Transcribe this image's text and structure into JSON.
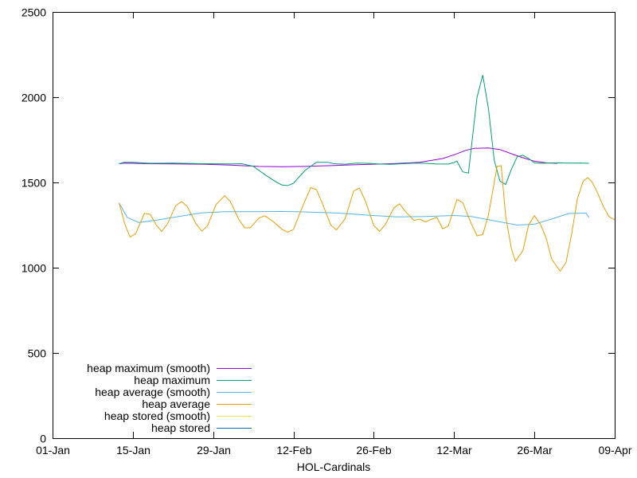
{
  "chart_data": {
    "type": "line",
    "title": "",
    "xlabel": "HOL-Cardinals",
    "ylabel": "",
    "x_ticks": [
      "01-Jan",
      "15-Jan",
      "29-Jan",
      "12-Feb",
      "26-Feb",
      "12-Mar",
      "26-Mar",
      "09-Apr"
    ],
    "y_ticks": [
      "0",
      "500",
      "1000",
      "1500",
      "2000",
      "2500"
    ],
    "x_range_days": [
      0,
      98
    ],
    "ylim": [
      0,
      2500
    ],
    "grid": false,
    "legend_position": "bottom-left",
    "series": [
      {
        "name": "heap maximum (smooth)",
        "color": "#9400d3",
        "points": [
          [
            11.6,
            1610
          ],
          [
            12.5,
            1613
          ],
          [
            14,
            1612
          ],
          [
            17,
            1610
          ],
          [
            21,
            1609
          ],
          [
            26,
            1607
          ],
          [
            31,
            1602
          ],
          [
            36,
            1594
          ],
          [
            40,
            1592
          ],
          [
            44,
            1594
          ],
          [
            48,
            1598
          ],
          [
            52,
            1603
          ],
          [
            56,
            1607
          ],
          [
            60,
            1611
          ],
          [
            64,
            1618
          ],
          [
            68,
            1640
          ],
          [
            70,
            1662
          ],
          [
            72,
            1688
          ],
          [
            73.5,
            1700
          ],
          [
            76,
            1702
          ],
          [
            78,
            1693
          ],
          [
            80,
            1668
          ],
          [
            82,
            1645
          ],
          [
            84,
            1625
          ],
          [
            86,
            1615
          ],
          [
            88,
            1612
          ]
        ]
      },
      {
        "name": "heap maximum",
        "color": "#009e73",
        "points": [
          [
            11.6,
            1610
          ],
          [
            12.5,
            1618
          ],
          [
            14,
            1618
          ],
          [
            17,
            1612
          ],
          [
            21,
            1613
          ],
          [
            26,
            1610
          ],
          [
            31,
            1609
          ],
          [
            33,
            1610
          ],
          [
            35,
            1595
          ],
          [
            37,
            1546
          ],
          [
            39,
            1502
          ],
          [
            40,
            1485
          ],
          [
            41,
            1482
          ],
          [
            42,
            1496
          ],
          [
            44,
            1570
          ],
          [
            46,
            1618
          ],
          [
            48,
            1618
          ],
          [
            49,
            1610
          ],
          [
            51,
            1607
          ],
          [
            53,
            1613
          ],
          [
            55,
            1612
          ],
          [
            57,
            1608
          ],
          [
            59,
            1606
          ],
          [
            61,
            1610
          ],
          [
            63,
            1613
          ],
          [
            65,
            1612
          ],
          [
            67,
            1608
          ],
          [
            69,
            1608
          ],
          [
            70,
            1617
          ],
          [
            70.5,
            1625
          ],
          [
            71.5,
            1562
          ],
          [
            72.5,
            1555
          ],
          [
            74,
            2000
          ],
          [
            75,
            2130
          ],
          [
            76,
            1930
          ],
          [
            77,
            1630
          ],
          [
            78,
            1508
          ],
          [
            79,
            1488
          ],
          [
            80,
            1578
          ],
          [
            81,
            1650
          ],
          [
            82,
            1660
          ],
          [
            83,
            1640
          ],
          [
            84,
            1615
          ],
          [
            85,
            1612
          ],
          [
            86,
            1613
          ],
          [
            88,
            1615
          ],
          [
            90,
            1613
          ],
          [
            92,
            1614
          ],
          [
            93.5,
            1612
          ]
        ]
      },
      {
        "name": "heap average (smooth)",
        "color": "#56b4e9",
        "points": [
          [
            11.6,
            1380
          ],
          [
            13,
            1295
          ],
          [
            15,
            1265
          ],
          [
            18,
            1278
          ],
          [
            22,
            1300
          ],
          [
            26,
            1322
          ],
          [
            30,
            1328
          ],
          [
            35,
            1328
          ],
          [
            40,
            1330
          ],
          [
            45,
            1326
          ],
          [
            50,
            1320
          ],
          [
            55,
            1308
          ],
          [
            60,
            1298
          ],
          [
            65,
            1300
          ],
          [
            70,
            1306
          ],
          [
            73,
            1300
          ],
          [
            77,
            1275
          ],
          [
            81,
            1250
          ],
          [
            84,
            1255
          ],
          [
            87,
            1285
          ],
          [
            90,
            1318
          ],
          [
            93,
            1320
          ],
          [
            93.5,
            1295
          ]
        ]
      },
      {
        "name": "heap average",
        "color": "#e69f00",
        "points": [
          [
            11.6,
            1380
          ],
          [
            12.6,
            1255
          ],
          [
            13.5,
            1180
          ],
          [
            14.5,
            1200
          ],
          [
            16,
            1318
          ],
          [
            17,
            1313
          ],
          [
            18,
            1255
          ],
          [
            19,
            1213
          ],
          [
            20,
            1255
          ],
          [
            21.5,
            1365
          ],
          [
            22.5,
            1388
          ],
          [
            23.5,
            1358
          ],
          [
            25,
            1258
          ],
          [
            26,
            1215
          ],
          [
            27,
            1245
          ],
          [
            28.5,
            1370
          ],
          [
            30,
            1422
          ],
          [
            31,
            1388
          ],
          [
            32.5,
            1282
          ],
          [
            33.5,
            1233
          ],
          [
            34.5,
            1235
          ],
          [
            36,
            1292
          ],
          [
            37,
            1304
          ],
          [
            38.5,
            1270
          ],
          [
            40,
            1225
          ],
          [
            41,
            1208
          ],
          [
            42,
            1225
          ],
          [
            43.5,
            1352
          ],
          [
            45,
            1470
          ],
          [
            46,
            1458
          ],
          [
            47,
            1380
          ],
          [
            48.5,
            1250
          ],
          [
            49.5,
            1222
          ],
          [
            51,
            1287
          ],
          [
            52.5,
            1450
          ],
          [
            53.5,
            1467
          ],
          [
            54.5,
            1395
          ],
          [
            56,
            1248
          ],
          [
            57,
            1213
          ],
          [
            58,
            1252
          ],
          [
            59.5,
            1350
          ],
          [
            60.5,
            1375
          ],
          [
            61.5,
            1330
          ],
          [
            63,
            1277
          ],
          [
            64,
            1285
          ],
          [
            65,
            1268
          ],
          [
            66,
            1283
          ],
          [
            67,
            1295
          ],
          [
            68,
            1228
          ],
          [
            69,
            1245
          ],
          [
            70.5,
            1400
          ],
          [
            71.5,
            1382
          ],
          [
            73,
            1258
          ],
          [
            74,
            1187
          ],
          [
            75,
            1195
          ],
          [
            76,
            1310
          ],
          [
            77.5,
            1595
          ],
          [
            78.2,
            1598
          ],
          [
            79,
            1300
          ],
          [
            80,
            1110
          ],
          [
            80.7,
            1038
          ],
          [
            82,
            1100
          ],
          [
            83,
            1250
          ],
          [
            84,
            1305
          ],
          [
            85,
            1258
          ],
          [
            86,
            1178
          ],
          [
            87,
            1050
          ],
          [
            88,
            1002
          ],
          [
            88.5,
            980
          ],
          [
            89.5,
            1030
          ],
          [
            90.5,
            1200
          ],
          [
            91.5,
            1405
          ],
          [
            92.5,
            1508
          ],
          [
            93.3,
            1528
          ],
          [
            94,
            1505
          ],
          [
            95,
            1440
          ],
          [
            96,
            1360
          ],
          [
            97,
            1300
          ],
          [
            98,
            1280
          ]
        ]
      },
      {
        "name": "heap stored (smooth)",
        "color": "#f0e442",
        "points": []
      },
      {
        "name": "heap stored",
        "color": "#0072b2",
        "points": []
      }
    ]
  }
}
